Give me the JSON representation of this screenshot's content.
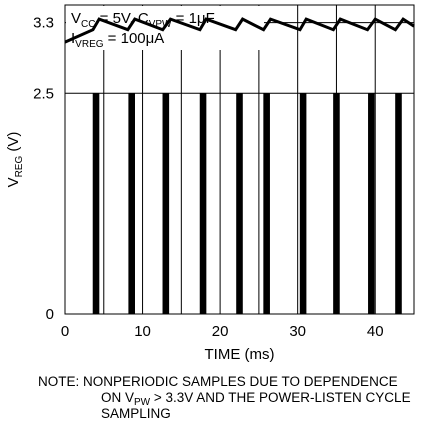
{
  "chart_data": {
    "type": "line",
    "xlabel": "TIME (ms)",
    "ylabel": {
      "main": "V",
      "sub": "REG",
      "unit": " (V)"
    },
    "xlim": [
      0,
      45
    ],
    "ylim": [
      0,
      3.5
    ],
    "xticks": [
      0,
      10,
      20,
      30,
      40
    ],
    "yticks": [
      0,
      2.5,
      3.3
    ],
    "grid": true,
    "annotations": [
      {
        "parts": [
          [
            "V",
            "normal"
          ],
          [
            "CC",
            "sub"
          ],
          [
            " = 5V, C",
            "normal"
          ],
          [
            "VPW",
            "sub"
          ],
          [
            " = 1μF",
            "normal"
          ]
        ]
      },
      {
        "parts": [
          [
            "I",
            "normal"
          ],
          [
            "VREG",
            "sub"
          ],
          [
            " = 100μA",
            "normal"
          ]
        ]
      }
    ],
    "series": [
      {
        "kind": "sawtooth",
        "x": [
          0,
          3.6,
          4.4,
          8.1,
          9.0,
          12.6,
          13.6,
          17.4,
          18.2,
          22.0,
          22.9,
          25.6,
          26.5,
          30.3,
          31.1,
          34.6,
          35.5,
          39.0,
          40.0,
          42.6,
          43.6,
          45.0
        ],
        "y": [
          3.08,
          3.22,
          3.34,
          3.22,
          3.34,
          3.22,
          3.34,
          3.22,
          3.34,
          3.22,
          3.34,
          3.22,
          3.34,
          3.22,
          3.34,
          3.22,
          3.34,
          3.22,
          3.34,
          3.22,
          3.34,
          3.26
        ]
      },
      {
        "kind": "pulses",
        "x": [
          4.0,
          8.6,
          13.0,
          17.8,
          22.5,
          26.0,
          30.7,
          35.0,
          39.5,
          43.0
        ],
        "y_low": 0,
        "y_high": 2.5,
        "width": 0.85
      }
    ]
  },
  "note": {
    "line1": "NOTE: NONPERIODIC SAMPLES DUE TO DEPENDENCE",
    "line2_pre": "ON V",
    "line2_sub": "PW",
    "line2_post": " > 3.3V AND THE POWER-LISTEN CYCLE",
    "line3": "SAMPLING"
  }
}
